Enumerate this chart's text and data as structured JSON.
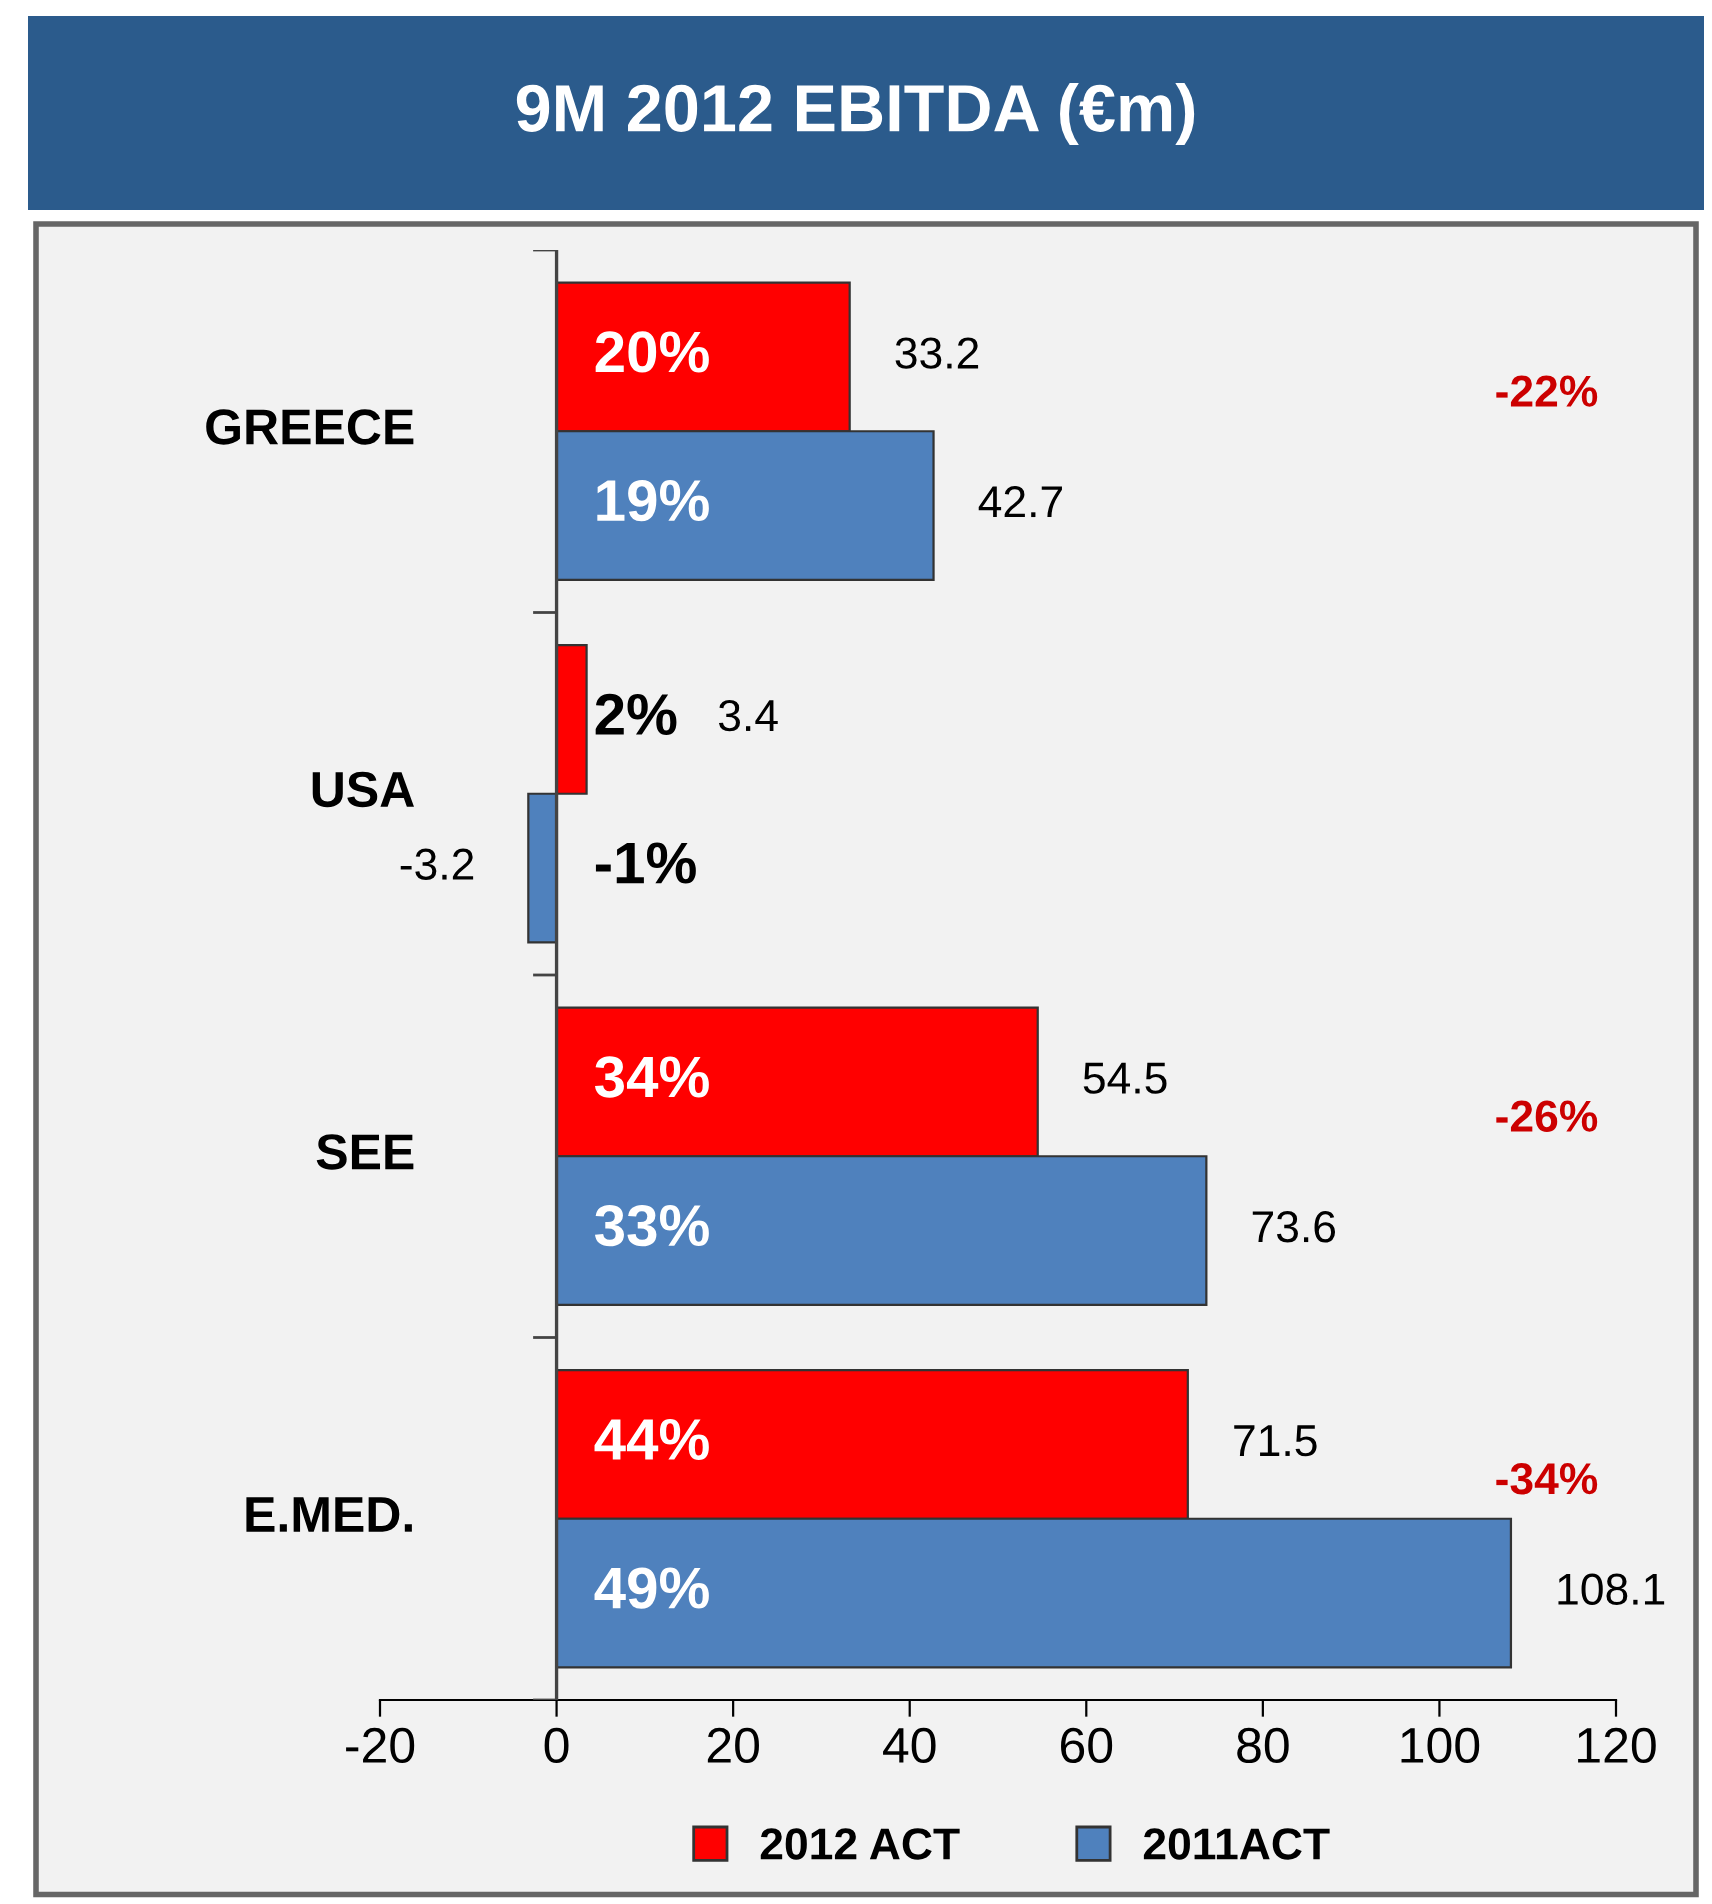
{
  "chart_data": {
    "type": "bar",
    "orientation": "horizontal",
    "title": "9M 2012 EBITDA (€m)",
    "categories": [
      "GREECE",
      "USA",
      "SEE",
      "E.MED."
    ],
    "series": [
      {
        "name": "2012 ACT",
        "color": "#ff0000",
        "values": [
          33.2,
          3.4,
          54.5,
          71.5
        ],
        "value_labels": [
          "33.2",
          "3.4",
          "54.5",
          "71.5"
        ]
      },
      {
        "name": "2011ACT",
        "color": "#4f81bd",
        "values": [
          42.7,
          -3.2,
          73.6,
          108.1
        ],
        "value_labels": [
          "42.7",
          "-3.2",
          "73.6",
          "108.1"
        ]
      }
    ],
    "annotations": [
      "20%",
      "19%",
      "-22%",
      "2%",
      "-1%",
      "34%",
      "33%",
      "-26%",
      "44%",
      "49%",
      "-34%"
    ],
    "xlim": [
      -20,
      120
    ],
    "xticks": [
      -20,
      0,
      20,
      40,
      60,
      80,
      100,
      120
    ],
    "legend": "bottom"
  }
}
